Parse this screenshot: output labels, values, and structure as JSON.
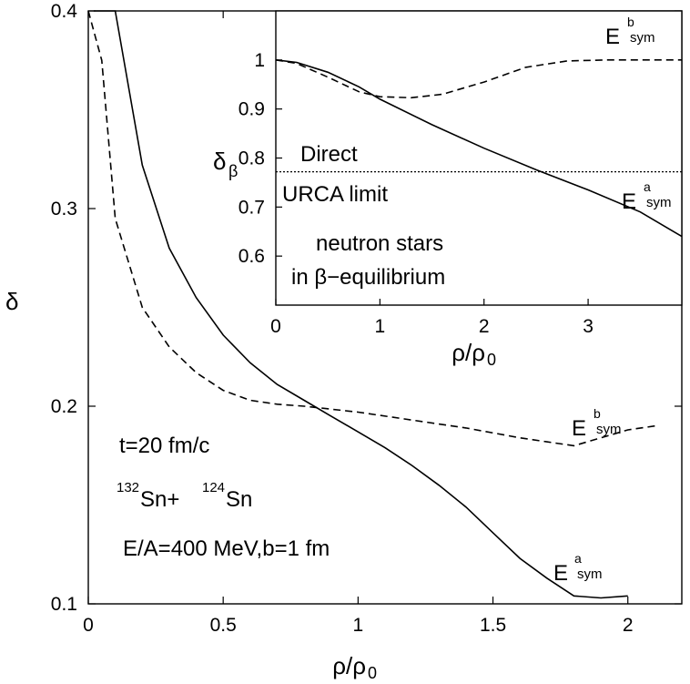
{
  "chart_data": [
    {
      "type": "line",
      "xlabel": "ρ/ρ",
      "xlabel_sub": "0",
      "ylabel": "δ",
      "xlim": [
        0,
        2.2
      ],
      "ylim": [
        0.1,
        0.4
      ],
      "xticks": [
        0,
        0.5,
        1,
        1.5,
        2
      ],
      "xtick_labels": [
        "0",
        "0.5",
        "1",
        "1.5",
        "2"
      ],
      "yticks": [
        0.1,
        0.2,
        0.3,
        0.4
      ],
      "ytick_labels": [
        "0.1",
        "0.2",
        "0.3",
        "0.4"
      ],
      "series": [
        {
          "label_main": "E",
          "label_sup": "a",
          "label_sub": "sym",
          "style": "solid",
          "x": [
            0.02,
            0.1,
            0.2,
            0.3,
            0.4,
            0.5,
            0.6,
            0.7,
            0.8,
            0.9,
            1.0,
            1.1,
            1.2,
            1.3,
            1.4,
            1.5,
            1.6,
            1.7,
            1.8,
            1.9,
            2.0
          ],
          "y": [
            0.4,
            0.4,
            0.322,
            0.28,
            0.255,
            0.236,
            0.222,
            0.211,
            0.203,
            0.195,
            0.187,
            0.179,
            0.17,
            0.16,
            0.149,
            0.136,
            0.123,
            0.113,
            0.104,
            0.103,
            0.104
          ]
        },
        {
          "label_main": "E",
          "label_sup": "b",
          "label_sub": "sym",
          "style": "dashed",
          "x": [
            0.0,
            0.05,
            0.1,
            0.2,
            0.3,
            0.4,
            0.5,
            0.6,
            0.7,
            0.8,
            1.0,
            1.2,
            1.4,
            1.6,
            1.7,
            1.8,
            1.9,
            2.0,
            2.1
          ],
          "y": [
            0.4,
            0.375,
            0.295,
            0.25,
            0.23,
            0.217,
            0.208,
            0.203,
            0.201,
            0.2,
            0.197,
            0.193,
            0.189,
            0.184,
            0.182,
            0.18,
            0.184,
            0.188,
            0.19
          ]
        }
      ],
      "annotations": {
        "time": "t=20 fm/c",
        "reaction_mass1": "132",
        "reaction_el1": "Sn+",
        "reaction_mass2": "124",
        "reaction_el2": "Sn",
        "energy": "E/A=400 MeV,b=1 fm"
      }
    },
    {
      "type": "line",
      "xlabel": "ρ/ρ",
      "xlabel_sub": "0",
      "ylabel": "δ",
      "ylabel_sub": "β",
      "xlim": [
        0,
        3.9
      ],
      "ylim": [
        0.5,
        1.1
      ],
      "xticks": [
        0,
        1,
        2,
        3
      ],
      "xtick_labels": [
        "0",
        "1",
        "2",
        "3"
      ],
      "yticks": [
        0.6,
        0.7,
        0.8,
        0.9,
        1.0
      ],
      "ytick_labels": [
        "0.6",
        "0.7",
        "0.8",
        "0.9",
        "1"
      ],
      "series": [
        {
          "label_main": "E",
          "label_sup": "a",
          "label_sub": "sym",
          "style": "solid",
          "x": [
            0.0,
            0.2,
            0.5,
            0.8,
            1.0,
            1.5,
            2.0,
            2.5,
            3.0,
            3.5,
            3.9
          ],
          "y": [
            1.0,
            0.995,
            0.975,
            0.945,
            0.92,
            0.868,
            0.82,
            0.776,
            0.735,
            0.69,
            0.64
          ]
        },
        {
          "label_main": "E",
          "label_sup": "b",
          "label_sub": "sym",
          "style": "dashed",
          "x": [
            0.0,
            0.2,
            0.5,
            0.8,
            1.0,
            1.3,
            1.6,
            2.0,
            2.4,
            2.8,
            3.2,
            3.6,
            3.9
          ],
          "y": [
            1.0,
            0.993,
            0.965,
            0.935,
            0.925,
            0.923,
            0.93,
            0.955,
            0.985,
            0.998,
            1.0,
            1.0,
            1.0
          ]
        },
        {
          "label": "Direct URCA limit",
          "style": "dotted",
          "x": [
            0.0,
            3.9
          ],
          "y": [
            0.772,
            0.772
          ]
        }
      ],
      "annotations": {
        "limit_line1": "Direct",
        "limit_line2": "URCA limit",
        "stars_line1": "neutron stars",
        "stars_line2": "in β−equilibrium"
      }
    }
  ]
}
